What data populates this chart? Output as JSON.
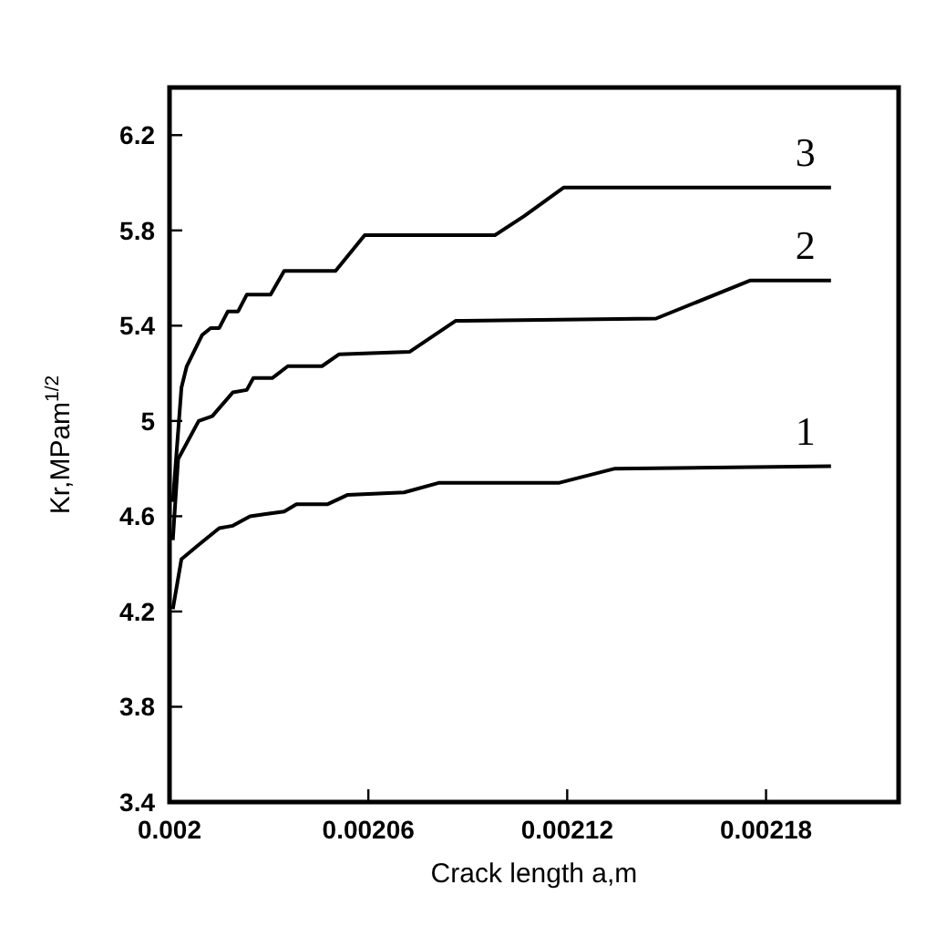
{
  "chart_data": {
    "type": "line",
    "xlabel": "Crack length a,m",
    "ylabel": "Kr,MPam$^{1/2}$",
    "xlim": [
      0.002,
      0.00222
    ],
    "ylim": [
      3.4,
      6.4
    ],
    "xticks": [
      0.002,
      0.00206,
      0.00212,
      0.00218
    ],
    "yticks": [
      3.4,
      3.8,
      4.2,
      {
        "value": 4.6,
        "label": "4.6"
      },
      5,
      5.4,
      5.8,
      6.2
    ],
    "grid": false,
    "marker": "none",
    "line_style": "solid",
    "series": [
      {
        "name": "1",
        "color": "#000000",
        "x": [
          0.002001,
          0.0020036,
          0.0020088,
          0.002015,
          0.0020191,
          0.0020243,
          0.0020295,
          0.0020346,
          0.0020383,
          0.0020476,
          0.0020538,
          0.0020708,
          0.0020812,
          0.0021174,
          0.0021344,
          0.0021996
        ],
        "values": [
          4.21,
          4.42,
          4.48,
          4.55,
          4.56,
          4.6,
          4.61,
          4.62,
          4.65,
          4.65,
          4.69,
          4.7,
          4.74,
          4.74,
          4.8,
          4.81
        ]
      },
      {
        "name": "2",
        "color": "#000000",
        "x": [
          0.002001,
          0.0020026,
          0.0020088,
          0.0020129,
          0.0020191,
          0.0020233,
          0.0020253,
          0.002031,
          0.0020357,
          0.002046,
          0.0020512,
          0.0020724,
          0.0020863,
          0.0021468,
          0.0021753,
          0.0021996
        ],
        "values": [
          4.5,
          4.84,
          5.0,
          5.02,
          5.12,
          5.13,
          5.18,
          5.18,
          5.23,
          5.23,
          5.28,
          5.29,
          5.42,
          5.43,
          5.59,
          5.59
        ]
      },
      {
        "name": "3",
        "color": "#000000",
        "x": [
          0.002001,
          0.0020036,
          0.0020052,
          0.0020098,
          0.0020124,
          0.002015,
          0.0020176,
          0.0020207,
          0.0020233,
          0.0020305,
          0.0020346,
          0.0020501,
          0.0020589,
          0.0020982,
          0.002107,
          0.0021189,
          0.0021996
        ],
        "values": [
          4.66,
          5.14,
          5.23,
          5.36,
          5.39,
          5.39,
          5.46,
          5.46,
          5.53,
          5.53,
          5.63,
          5.63,
          5.78,
          5.78,
          5.86,
          5.98,
          5.98
        ]
      }
    ]
  }
}
